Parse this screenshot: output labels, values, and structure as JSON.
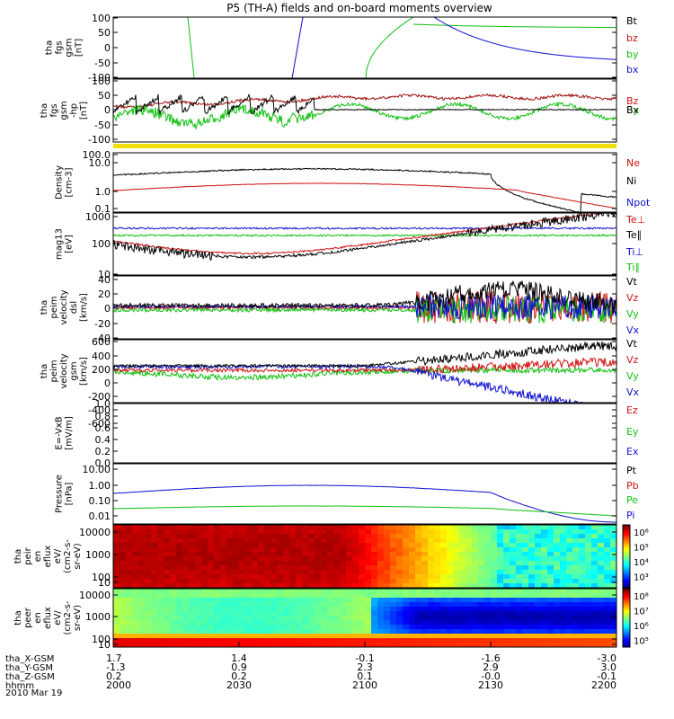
{
  "title": "P5 (TH-A) fields and on-board moments overview",
  "chart_data": {
    "type": "multi-panel-timeseries",
    "x_ticks": [
      "2000",
      "2030",
      "2100",
      "2130",
      "2200"
    ],
    "ephemeris": [
      {
        "label": "tha_X-GSM",
        "values": [
          "1.7",
          "1.4",
          "-0.1",
          "-1.6",
          "-3.0"
        ]
      },
      {
        "label": "tha_Y-GSM",
        "values": [
          "-1.3",
          "0.9",
          "2.3",
          "2.9",
          "3.0"
        ]
      },
      {
        "label": "tha_Z-GSM",
        "values": [
          "0.2",
          "0.2",
          "0.1",
          "-0.0",
          "-0.1"
        ]
      },
      {
        "label": "hhmm",
        "values": [
          "2000",
          "2030",
          "2100",
          "2130",
          "2200"
        ]
      }
    ],
    "date": "2010 Mar 19",
    "panels": [
      {
        "id": "fgs",
        "ylabel": [
          "tha",
          "fgs",
          "gsm",
          "[nT]"
        ],
        "ticks": [
          "100",
          "50",
          "0",
          "-50",
          "-100"
        ],
        "legend": [
          {
            "name": "Bt",
            "color": "#000000"
          },
          {
            "name": "bz",
            "color": "#d01010"
          },
          {
            "name": "by",
            "color": "#10c010"
          },
          {
            "name": "bx",
            "color": "#1010d0"
          }
        ]
      },
      {
        "id": "fgs-hp",
        "ylabel": [
          "tha",
          "fgs",
          "gsm",
          "-hp",
          "[nT]"
        ],
        "ticks": [
          "100",
          "50",
          "0",
          "-50",
          "-100"
        ],
        "legend": [
          {
            "name": "Bz",
            "color": "#d01010"
          },
          {
            "name": "By",
            "color": "#10c010"
          },
          {
            "name": "Bx",
            "color": "#000000"
          }
        ]
      },
      {
        "id": "density",
        "ylabel": [
          "Density",
          "[cm-3]"
        ],
        "ticks": [
          "100.0",
          "10.0",
          "1.0",
          "0.1"
        ],
        "legend": [
          {
            "name": "Ne",
            "color": "#d01010"
          },
          {
            "name": "Ni",
            "color": "#000000"
          },
          {
            "name": "Npot",
            "color": "#1010d0"
          }
        ]
      },
      {
        "id": "temp",
        "ylabel": [
          "mag13",
          "[eV]"
        ],
        "ticks": [
          "1000",
          "100",
          "10"
        ],
        "legend": [
          {
            "name": "Te⊥",
            "color": "#d01010"
          },
          {
            "name": "Te∥",
            "color": "#000000"
          },
          {
            "name": "Ti⊥",
            "color": "#1010d0"
          },
          {
            "name": "Ti∥",
            "color": "#10c010"
          }
        ]
      },
      {
        "id": "vel-despun",
        "ylabel": [
          "tha",
          "peim",
          "velocity",
          "dsl",
          "[km/s]"
        ],
        "ticks": [
          "40",
          "20",
          "0",
          "-20",
          "-40"
        ],
        "legend": [
          {
            "name": "Vt",
            "color": "#000000"
          },
          {
            "name": "Vz",
            "color": "#d01010"
          },
          {
            "name": "Vy",
            "color": "#10c010"
          },
          {
            "name": "Vx",
            "color": "#1010d0"
          }
        ]
      },
      {
        "id": "vel-gsm",
        "ylabel": [
          "tha",
          "peim",
          "velocity",
          "gsm",
          "[km/s]"
        ],
        "ticks": [
          "600",
          "400",
          "200",
          "0",
          "-200",
          "-400",
          "-600"
        ],
        "legend": [
          {
            "name": "Vt",
            "color": "#000000"
          },
          {
            "name": "Vz",
            "color": "#d01010"
          },
          {
            "name": "Vy",
            "color": "#10c010"
          },
          {
            "name": "Vx",
            "color": "#1010d0"
          }
        ]
      },
      {
        "id": "efield",
        "ylabel": [
          "E=-VxB",
          "[mV/m]"
        ],
        "ticks": [
          "1.0",
          "0.8",
          "0.6",
          "0.4",
          "0.2",
          "0.0"
        ],
        "legend": [
          {
            "name": "Ez",
            "color": "#d01010"
          },
          {
            "name": "Ey",
            "color": "#10c010"
          },
          {
            "name": "Ex",
            "color": "#1010d0"
          }
        ]
      },
      {
        "id": "pressure",
        "ylabel": [
          "Pressure",
          "[nPa]"
        ],
        "ticks": [
          "10.00",
          "1.00",
          "0.10",
          "0.01"
        ],
        "legend": [
          {
            "name": "Pt",
            "color": "#000000"
          },
          {
            "name": "Pb",
            "color": "#d01010"
          },
          {
            "name": "Pe",
            "color": "#10c010"
          },
          {
            "name": "Pi",
            "color": "#1010d0"
          }
        ]
      },
      {
        "id": "ion-spec",
        "ylabel": [
          "tha",
          "peir",
          "en",
          "eflux",
          "eV/",
          "(cm2-s-",
          "sr-eV)"
        ],
        "ticks": [
          "10000",
          "1000",
          "100",
          "10"
        ],
        "colorbar": [
          "10⁶",
          "10⁵",
          "10⁴",
          "10³"
        ]
      },
      {
        "id": "ele-spec",
        "ylabel": [
          "tha",
          "peer",
          "en",
          "eflux",
          "eV/",
          "(cm2-s-",
          "sr-eV)"
        ],
        "ticks": [
          "10000",
          "1000",
          "100",
          "10"
        ],
        "colorbar": [
          "10⁸",
          "10⁷",
          "10⁶",
          "10⁵"
        ]
      }
    ]
  }
}
